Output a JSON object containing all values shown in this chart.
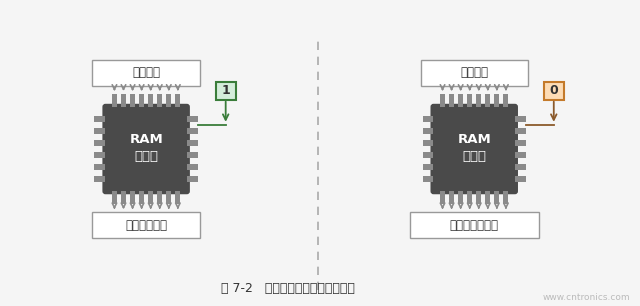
{
  "bg_color": "#f5f5f5",
  "chip_color": "#4a4a4a",
  "chip_color2": "#3d3d3d",
  "pin_color": "#8a8a8a",
  "box_color": "#ffffff",
  "box_border": "#999999",
  "arrow_color": "#8a8a8a",
  "write_signal_color": "#3a7d3a",
  "read_signal_color": "#8b5a2b",
  "signal_box_write_bg": "#d4edda",
  "signal_box_write_border": "#3a7d3a",
  "signal_box_read_bg": "#fddcb5",
  "signal_box_read_border": "#c47a2a",
  "dashed_line_color": "#aaaaaa",
  "text_color": "#333333",
  "white_text": "#ffffff",
  "caption": "图 7-2   存储器包括读模式与写模式",
  "watermark": "www.cntronics.com",
  "left_top_label": "单元地址",
  "left_bottom_label": "单元的新数据",
  "left_chip_line1": "RAM",
  "left_chip_line2": "写模式",
  "left_signal": "1",
  "right_top_label": "单元地址",
  "right_bottom_label": "单元的当前数据",
  "right_chip_line1": "RAM",
  "right_chip_line2": "读模式",
  "right_signal": "0",
  "figsize": [
    6.4,
    3.06
  ],
  "dpi": 100
}
